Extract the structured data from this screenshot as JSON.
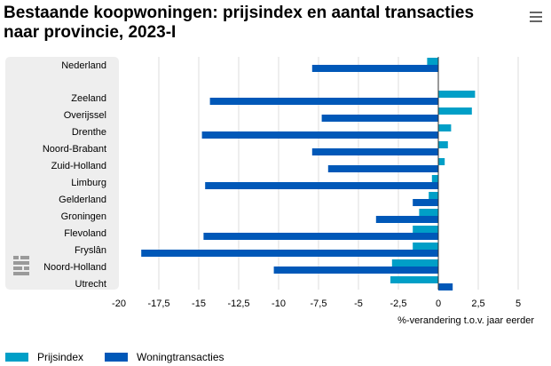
{
  "chart_data": {
    "type": "bar",
    "orientation": "horizontal",
    "title": "Bestaande koopwoningen: prijsindex en aantal transacties naar provincie, 2023-I",
    "xlabel": "%-verandering t.o.v. jaar eerder",
    "ylabel": "",
    "xlim": [
      -20,
      5
    ],
    "xticks": [
      -20,
      -17.5,
      -15,
      -12.5,
      -10,
      -7.5,
      -5,
      -2.5,
      0,
      2.5,
      5
    ],
    "xtick_labels": [
      "-20",
      "-17,5",
      "-15",
      "-12,5",
      "-10",
      "-7,5",
      "-5",
      "-2,5",
      "0",
      "2,5",
      "5"
    ],
    "categories": [
      "Nederland",
      "Zeeland",
      "Overijssel",
      "Drenthe",
      "Noord-Brabant",
      "Zuid-Holland",
      "Limburg",
      "Gelderland",
      "Groningen",
      "Flevoland",
      "Fryslân",
      "Noord-Holland",
      "Utrecht"
    ],
    "series": [
      {
        "name": "Prijsindex",
        "color": "#009fc7",
        "values": [
          -0.7,
          2.3,
          2.1,
          0.8,
          0.6,
          0.4,
          -0.4,
          -0.6,
          -1.2,
          -1.6,
          -1.6,
          -2.9,
          -3.0
        ]
      },
      {
        "name": "Woningtransacties",
        "color": "#0058b8",
        "values": [
          -7.9,
          -14.3,
          -7.3,
          -14.8,
          -7.9,
          -6.9,
          -14.6,
          -1.6,
          -3.9,
          -14.7,
          -18.6,
          -10.3,
          0.9
        ]
      }
    ],
    "grid": true,
    "legend": "bottom-left"
  }
}
